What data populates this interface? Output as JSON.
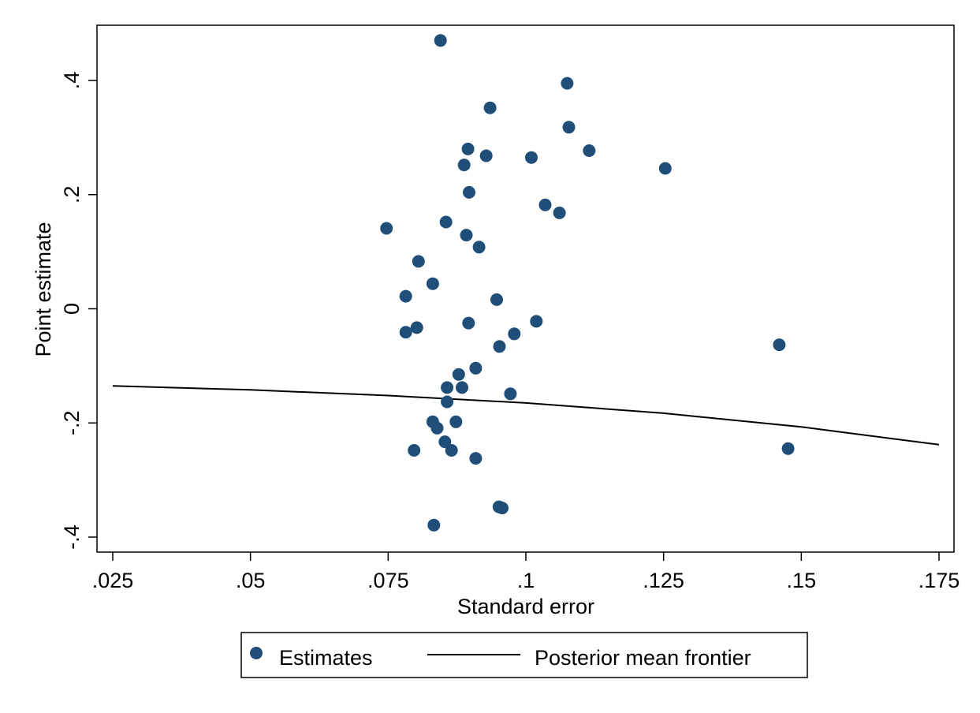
{
  "chart_data": {
    "type": "scatter",
    "xlabel": "Standard error",
    "ylabel": "Point estimate",
    "xlim": [
      0.025,
      0.175
    ],
    "ylim": [
      -0.4,
      0.4
    ],
    "x_ticks": [
      0.025,
      0.05,
      0.075,
      0.1,
      0.125,
      0.15,
      0.175
    ],
    "x_tick_labels": [
      ".025",
      ".05",
      ".075",
      ".1",
      ".125",
      ".15",
      ".175"
    ],
    "y_ticks": [
      -0.4,
      -0.2,
      0,
      0.2,
      0.4
    ],
    "y_tick_labels": [
      "-.4",
      "-.2",
      "0",
      ".2",
      ".4"
    ],
    "grid": false,
    "legend_position": "bottom",
    "series": [
      {
        "name": "Estimates",
        "kind": "scatter",
        "color": "#1f4e79",
        "points": [
          {
            "x": 0.0845,
            "y": 0.47
          },
          {
            "x": 0.1075,
            "y": 0.395
          },
          {
            "x": 0.0935,
            "y": 0.352
          },
          {
            "x": 0.1078,
            "y": 0.318
          },
          {
            "x": 0.0895,
            "y": 0.28
          },
          {
            "x": 0.1115,
            "y": 0.277
          },
          {
            "x": 0.0928,
            "y": 0.268
          },
          {
            "x": 0.101,
            "y": 0.265
          },
          {
            "x": 0.0888,
            "y": 0.252
          },
          {
            "x": 0.1253,
            "y": 0.246
          },
          {
            "x": 0.0897,
            "y": 0.204
          },
          {
            "x": 0.1035,
            "y": 0.182
          },
          {
            "x": 0.1061,
            "y": 0.168
          },
          {
            "x": 0.0855,
            "y": 0.152
          },
          {
            "x": 0.0747,
            "y": 0.141
          },
          {
            "x": 0.0892,
            "y": 0.129
          },
          {
            "x": 0.0915,
            "y": 0.108
          },
          {
            "x": 0.0805,
            "y": 0.083
          },
          {
            "x": 0.0831,
            "y": 0.044
          },
          {
            "x": 0.0782,
            "y": 0.022
          },
          {
            "x": 0.0947,
            "y": 0.016
          },
          {
            "x": 0.1019,
            "y": -0.022
          },
          {
            "x": 0.0896,
            "y": -0.025
          },
          {
            "x": 0.0802,
            "y": -0.033
          },
          {
            "x": 0.0782,
            "y": -0.041
          },
          {
            "x": 0.0979,
            "y": -0.044
          },
          {
            "x": 0.0952,
            "y": -0.066
          },
          {
            "x": 0.146,
            "y": -0.063
          },
          {
            "x": 0.0909,
            "y": -0.104
          },
          {
            "x": 0.0878,
            "y": -0.115
          },
          {
            "x": 0.0857,
            "y": -0.138
          },
          {
            "x": 0.0884,
            "y": -0.138
          },
          {
            "x": 0.0972,
            "y": -0.149
          },
          {
            "x": 0.0857,
            "y": -0.163
          },
          {
            "x": 0.0831,
            "y": -0.198
          },
          {
            "x": 0.0873,
            "y": -0.198
          },
          {
            "x": 0.0839,
            "y": -0.209
          },
          {
            "x": 0.0853,
            "y": -0.233
          },
          {
            "x": 0.0797,
            "y": -0.248
          },
          {
            "x": 0.0865,
            "y": -0.248
          },
          {
            "x": 0.1476,
            "y": -0.245
          },
          {
            "x": 0.0909,
            "y": -0.262
          },
          {
            "x": 0.0951,
            "y": -0.347
          },
          {
            "x": 0.0957,
            "y": -0.349
          },
          {
            "x": 0.0833,
            "y": -0.379
          }
        ]
      },
      {
        "name": "Posterior mean frontier",
        "kind": "line",
        "color": "#000000",
        "points": [
          {
            "x": 0.025,
            "y": -0.135
          },
          {
            "x": 0.05,
            "y": -0.142
          },
          {
            "x": 0.075,
            "y": -0.152
          },
          {
            "x": 0.1,
            "y": -0.165
          },
          {
            "x": 0.125,
            "y": -0.183
          },
          {
            "x": 0.15,
            "y": -0.207
          },
          {
            "x": 0.175,
            "y": -0.238
          }
        ]
      }
    ]
  }
}
